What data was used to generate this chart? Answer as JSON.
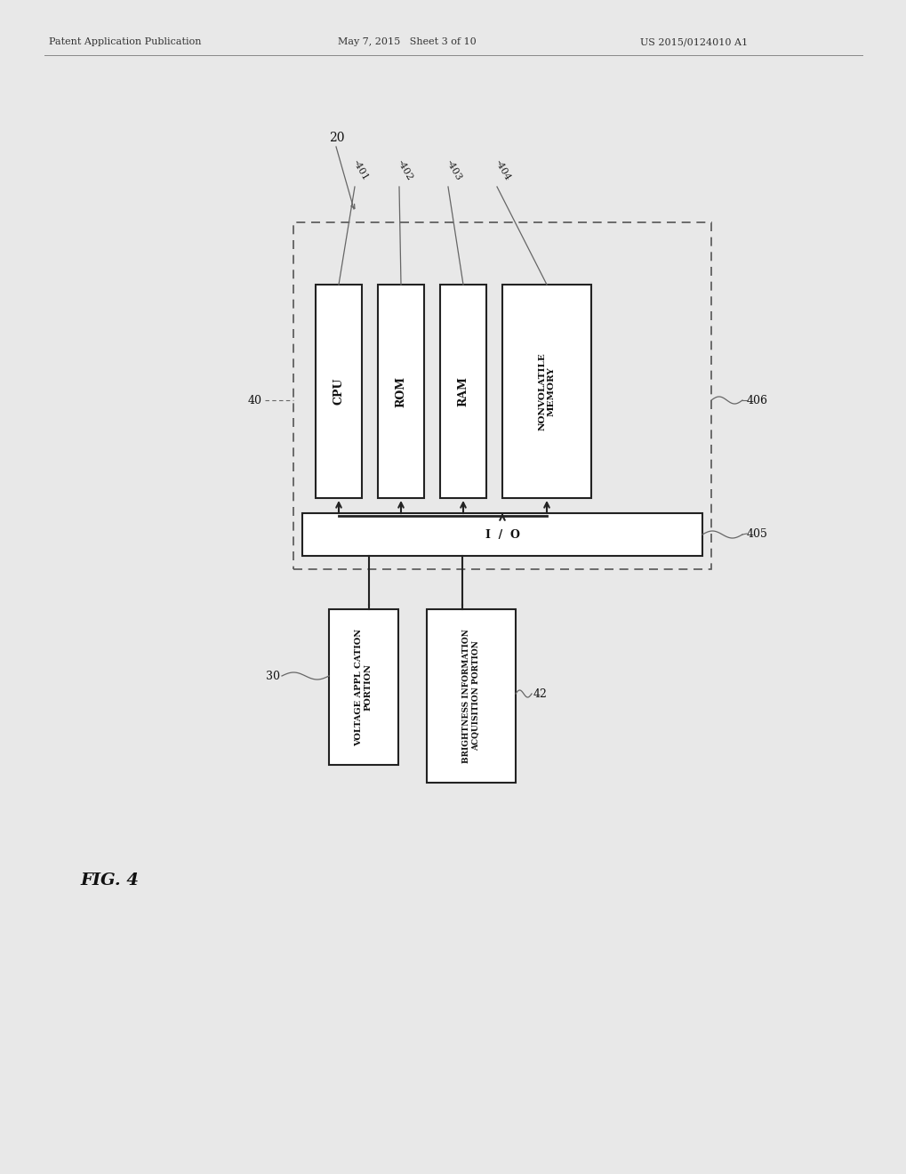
{
  "bg_color": "#e8e8e8",
  "header_left": "Patent Application Publication",
  "header_mid": "May 7, 2015   Sheet 3 of 10",
  "header_right": "US 2015/0124010 A1",
  "fig_label": "FIG. 4",
  "label_20": "20",
  "label_40": "40",
  "label_30": "30",
  "label_42": "42",
  "label_401": "401",
  "label_402": "402",
  "label_403": "403",
  "label_404": "404",
  "label_405": "405",
  "label_406": "406",
  "cpu_text": "CPU",
  "rom_text": "ROM",
  "ram_text": "RAM",
  "nonvol_text": "NONVOLATILE\nMEMORY",
  "io_text": "I  /  O",
  "volt_text": "VOLTAGE APPL CATION\nPORTION",
  "bright_text": "BRIGHTNESS INFORMATION\nACQUISITION PORTION"
}
